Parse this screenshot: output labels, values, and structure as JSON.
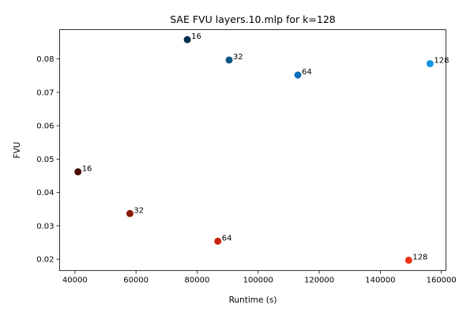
{
  "chart_data": {
    "type": "scatter",
    "title": "SAE FVU layers.10.mlp for k=128",
    "xlabel": "Runtime (s)",
    "ylabel": "FVU",
    "xlim": [
      35000,
      161500
    ],
    "ylim": [
      0.0166,
      0.0888
    ],
    "x_ticks": [
      40000,
      60000,
      80000,
      100000,
      120000,
      140000,
      160000
    ],
    "x_tick_labels": [
      "40000",
      "60000",
      "80000",
      "100000",
      "120000",
      "140000",
      "160000"
    ],
    "y_ticks": [
      0.02,
      0.03,
      0.04,
      0.05,
      0.06,
      0.07,
      0.08
    ],
    "y_tick_labels": [
      "0.02",
      "0.03",
      "0.04",
      "0.05",
      "0.06",
      "0.07",
      "0.08"
    ],
    "grid": false,
    "legend": "none",
    "points": [
      {
        "x": 76800,
        "y": 0.0858,
        "label": "16",
        "color": "#06304a"
      },
      {
        "x": 90500,
        "y": 0.0797,
        "label": "32",
        "color": "#0a5585"
      },
      {
        "x": 113000,
        "y": 0.0752,
        "label": "64",
        "color": "#0a70ba"
      },
      {
        "x": 156300,
        "y": 0.0786,
        "label": "128",
        "color": "#1395e6"
      },
      {
        "x": 41000,
        "y": 0.0462,
        "label": "16",
        "color": "#4a0d06"
      },
      {
        "x": 58000,
        "y": 0.0337,
        "label": "32",
        "color": "#8a1a08"
      },
      {
        "x": 86800,
        "y": 0.0254,
        "label": "64",
        "color": "#c7260e"
      },
      {
        "x": 149300,
        "y": 0.0197,
        "label": "128",
        "color": "#f03212"
      }
    ]
  }
}
